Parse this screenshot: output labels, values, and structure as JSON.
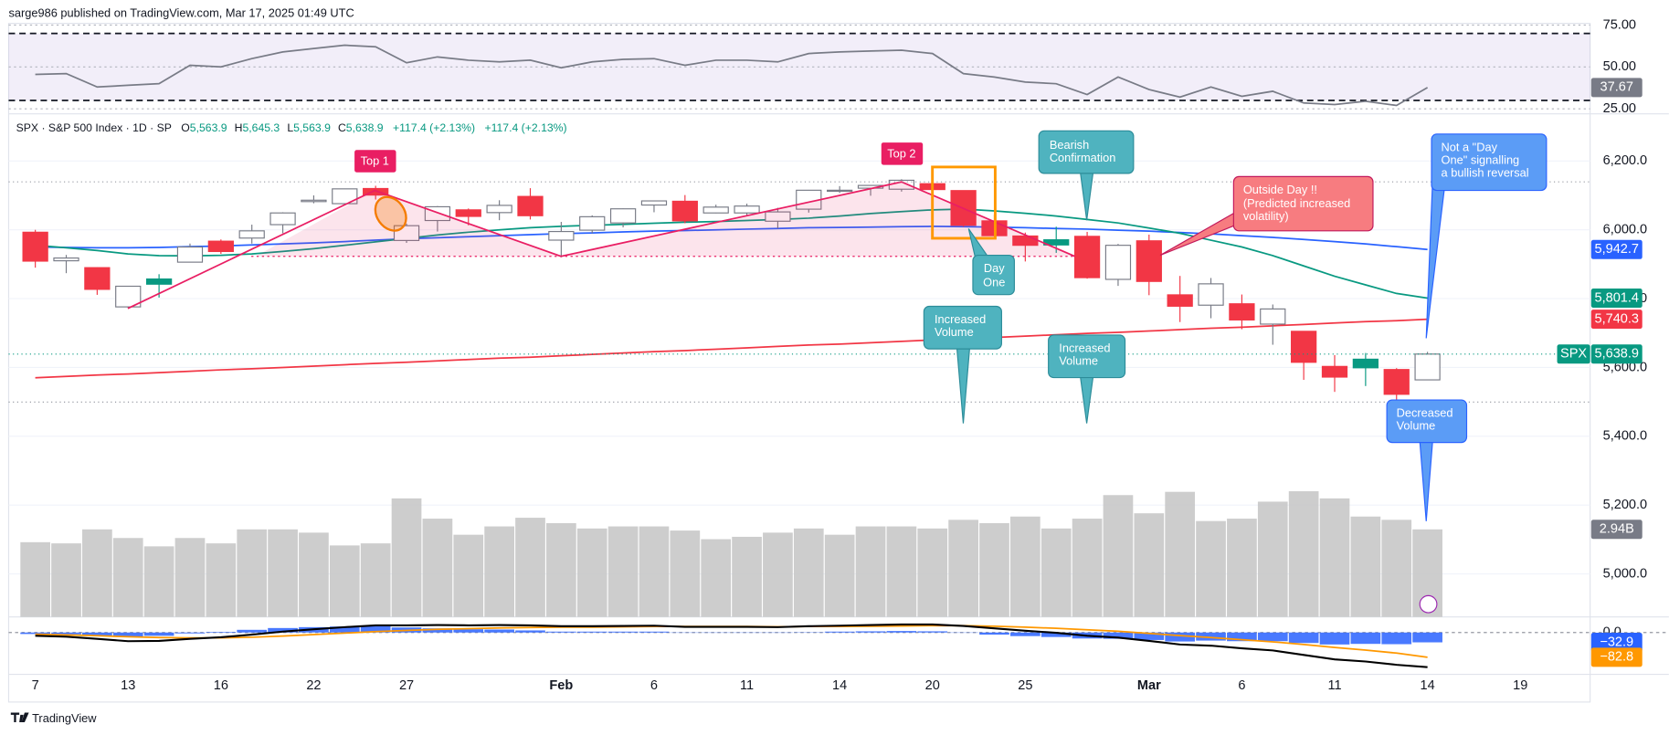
{
  "header": {
    "publisher": "sarge986 published on TradingView.com, Mar 17, 2025 01:49 UTC"
  },
  "footer": {
    "brand": "TradingView"
  },
  "chart_data": {
    "type": "candlestick",
    "legend": {
      "symbol": "SPX · S&P 500 Index · 1D · SP",
      "fields": [
        {
          "key": "O",
          "value": "5,563.9"
        },
        {
          "key": "H",
          "value": "5,645.3"
        },
        {
          "key": "L",
          "value": "5,563.9"
        },
        {
          "key": "C",
          "value": "5,638.9"
        }
      ],
      "changes": [
        "+117.4 (+2.13%)",
        "+117.4 (+2.13%)"
      ]
    },
    "categories": [
      "7",
      null,
      null,
      "13",
      null,
      null,
      "16",
      null,
      null,
      "22",
      null,
      null,
      "27",
      null,
      null,
      null,
      null,
      "Feb",
      null,
      null,
      "6",
      null,
      null,
      "11",
      null,
      null,
      "14",
      null,
      null,
      "20",
      null,
      null,
      "25",
      null,
      null,
      null,
      "Mar",
      null,
      null,
      "6",
      null,
      null,
      "11",
      null,
      null,
      "14",
      null,
      null,
      "19"
    ],
    "open": [
      5993,
      5910,
      5890,
      5776,
      5857,
      5906,
      5967,
      5976,
      6015,
      6082,
      6076,
      6120,
      5969,
      6027,
      6058,
      6050,
      6097,
      5970,
      5999,
      6020,
      6072,
      6083,
      6049,
      6049,
      6025,
      6060,
      6115,
      6121,
      6118,
      6134,
      6114,
      6026,
      5982,
      5971,
      5981,
      5856,
      5968,
      5811,
      5781,
      5785,
      5726,
      5705,
      5603,
      5624,
      5594,
      5563.9,
      null,
      null,
      null
    ],
    "high": [
      6000,
      5927,
      5891,
      5836,
      5871,
      5960,
      5972,
      6015,
      6051,
      6100,
      6118,
      6128,
      6018,
      6069,
      6062,
      6086,
      6121,
      6023,
      6042,
      6062,
      6084,
      6101,
      6073,
      6076,
      6064,
      6116,
      6127,
      6129,
      6147,
      6134,
      6114,
      6044,
      5992,
      6009,
      5994,
      5959,
      5986,
      5866,
      5860,
      5812,
      5783,
      5705,
      5636,
      5642,
      5598,
      5645.3,
      null,
      null,
      null
    ],
    "low": [
      5890,
      5874,
      5811,
      5773,
      5803,
      5906,
      5930,
      5960,
      5990,
      6077,
      6074,
      6088,
      5962,
      5995,
      6013,
      6028,
      6030,
      5920,
      5990,
      6007,
      6051,
      6019,
      6048,
      6042,
      6004,
      6050,
      6107,
      6099,
      6111,
      6084,
      6009,
      5980,
      5908,
      5933,
      5858,
      5837,
      5810,
      5732,
      5743,
      5711,
      5666,
      5564,
      5529,
      5546,
      5504,
      5563.9,
      null,
      null,
      null
    ],
    "close": [
      5909,
      5918,
      5827,
      5836,
      5842,
      5950,
      5937,
      5997,
      6049,
      6086,
      6119,
      6101,
      6012,
      6067,
      6039,
      6071,
      6041,
      5995,
      6038,
      6061,
      6084,
      6026,
      6066,
      6069,
      6052,
      6115,
      6115,
      6129,
      6144,
      6117,
      6013,
      5983,
      5955,
      5956,
      5861,
      5955,
      5850,
      5778,
      5843,
      5738,
      5770,
      5615,
      5572,
      5599,
      5522,
      5638.9,
      null,
      null,
      null
    ],
    "up_color": "#089981",
    "down_color": "#f23645",
    "hollow_stroke": "#787b86",
    "last_price": {
      "symbol": "SPX",
      "label": "5,638.9",
      "color": "#089981"
    },
    "ylim": [
      4875,
      6334
    ],
    "yticks": [
      {
        "value": 6200,
        "label": "6,200.0"
      },
      {
        "value": 6000,
        "label": "6,000.0"
      },
      {
        "value": 5800,
        "label": "5,800.0"
      },
      {
        "value": 5600,
        "label": "5,600.0"
      },
      {
        "value": 5400,
        "label": "5,400.0"
      },
      {
        "value": 5200,
        "label": "5,200.0"
      },
      {
        "value": 5000,
        "label": "5,000.0"
      }
    ],
    "grid": true,
    "overlays": [
      {
        "color": "#f23645",
        "last_label": "5,740.3",
        "values": [
          5570,
          5574,
          5578,
          5581,
          5585,
          5589,
          5593,
          5596,
          5600,
          5604,
          5608,
          5612,
          5615,
          5619,
          5623,
          5627,
          5630,
          5634,
          5638,
          5642,
          5646,
          5649,
          5653,
          5657,
          5661,
          5665,
          5668,
          5672,
          5676,
          5680,
          5683,
          5687,
          5691,
          5695,
          5699,
          5702,
          5706,
          5710,
          5714,
          5717,
          5721,
          5725,
          5729,
          5733,
          5736,
          5740.3,
          null,
          null,
          null
        ]
      },
      {
        "color": "#2962ff",
        "last_label": "5,942.7",
        "values": [
          5950,
          5949,
          5948,
          5948,
          5949,
          5951,
          5953,
          5956,
          5959,
          5962,
          5966,
          5970,
          5974,
          5977,
          5980,
          5983,
          5986,
          5989,
          5991,
          5994,
          5996,
          5998,
          6000,
          6002,
          6004,
          6006,
          6007,
          6008,
          6009,
          6010,
          6009,
          6008,
          6006,
          6004,
          6002,
          5999,
          5996,
          5992,
          5988,
          5983,
          5978,
          5972,
          5966,
          5959,
          5951,
          5942.7,
          null,
          null,
          null
        ]
      },
      {
        "color": "#089981",
        "last_label": "5,801.4",
        "values": [
          5955,
          5948,
          5940,
          5930,
          5925,
          5924,
          5926,
          5930,
          5937,
          5945,
          5955,
          5965,
          5975,
          5985,
          5993,
          6000,
          6006,
          6010,
          6013,
          6016,
          6019,
          6022,
          6024,
          6027,
          6030,
          6034,
          6040,
          6047,
          6053,
          6058,
          6060,
          6055,
          6048,
          6040,
          6030,
          6020,
          6005,
          5990,
          5970,
          5950,
          5925,
          5895,
          5865,
          5840,
          5815,
          5801.4,
          null,
          null,
          null
        ]
      }
    ],
    "volume": {
      "color": "#c4c4c4",
      "lim": [
        0,
        5
      ],
      "last_label": "2.94B",
      "values": [
        2.51,
        2.47,
        2.94,
        2.65,
        2.37,
        2.65,
        2.47,
        2.94,
        2.94,
        2.83,
        2.4,
        2.47,
        3.98,
        3.3,
        2.76,
        3.04,
        3.33,
        3.15,
        2.97,
        3.04,
        3.04,
        2.9,
        2.61,
        2.69,
        2.83,
        2.97,
        2.76,
        3.04,
        3.04,
        2.97,
        3.26,
        3.15,
        3.37,
        2.97,
        3.3,
        4.09,
        3.48,
        4.2,
        3.22,
        3.3,
        3.87,
        4.22,
        3.98,
        3.37,
        3.26,
        2.94,
        null,
        null,
        null
      ]
    },
    "rsi": {
      "color": "#787b86",
      "ylim": [
        22,
        76
      ],
      "yticks": [
        {
          "value": 75,
          "label": "75.00"
        },
        {
          "value": 50,
          "label": "50.00"
        },
        {
          "value": 25,
          "label": "25.00"
        }
      ],
      "band": [
        30,
        70
      ],
      "last_label": "37.67",
      "values": [
        45.5,
        46,
        38,
        39,
        40,
        51,
        50,
        55,
        59,
        61,
        63,
        62,
        52.5,
        56,
        54,
        53,
        54,
        49.5,
        53,
        54.5,
        55,
        51,
        54,
        54,
        53,
        58,
        59,
        59.5,
        60,
        58,
        46,
        44,
        41,
        40,
        33.5,
        44,
        36.5,
        32,
        38,
        32.5,
        35.5,
        28.5,
        27.5,
        29.5,
        27,
        37.67,
        null,
        null,
        null
      ]
    },
    "macd": {
      "ylim": [
        -140,
        45
      ],
      "yticks": [
        {
          "value": 0,
          "label": "0.0"
        }
      ],
      "line": {
        "color": "#000000",
        "values": [
          -11,
          -14,
          -21,
          -29,
          -28,
          -21,
          -16,
          -7,
          3,
          11,
          18,
          24,
          24,
          25,
          24,
          25,
          24,
          21,
          21,
          22,
          23,
          19,
          19,
          19,
          18,
          21,
          23,
          25,
          27,
          27,
          22,
          14,
          6,
          -1,
          -11,
          -17,
          -28,
          -40,
          -44,
          -53,
          -60,
          -75,
          -90,
          -97,
          -108,
          -115.7,
          null,
          null,
          null
        ]
      },
      "signal": {
        "color": "#ff9800",
        "last_label": "−82.8",
        "values": [
          -6,
          -8,
          -11,
          -14,
          -17,
          -18,
          -18,
          -16,
          -12,
          -7,
          -2,
          3,
          7,
          11,
          13,
          15,
          17,
          18,
          18,
          19,
          20,
          20,
          20,
          20,
          19,
          20,
          20,
          21,
          22,
          23,
          23,
          21,
          18,
          14,
          9,
          4,
          -3,
          -10,
          -17,
          -24,
          -31,
          -40,
          -50,
          -59,
          -69,
          -82.8,
          null,
          null,
          null
        ]
      },
      "histogram": {
        "color": "#2962ff",
        "last_label": "−32.9",
        "values": [
          -5,
          -6,
          -10,
          -15,
          -11,
          -3,
          2,
          9,
          15,
          18,
          20,
          21,
          17,
          14,
          11,
          10,
          7,
          3,
          3,
          3,
          3,
          -1,
          -1,
          -1,
          -1,
          1,
          3,
          4,
          5,
          4,
          -1,
          -7,
          -12,
          -15,
          -20,
          -21,
          -25,
          -30,
          -27,
          -29,
          -29,
          -35,
          -40,
          -38,
          -39,
          -32.9,
          null,
          null,
          null
        ]
      }
    },
    "annotations": {
      "top1": "Top 1",
      "top2": "Top 2",
      "bearish": [
        "Bearish",
        "Confirmation"
      ],
      "day_one": [
        "Day",
        "One"
      ],
      "volume_up_1": [
        "Increased",
        "Volume"
      ],
      "volume_up_2": [
        "Increased",
        "Volume"
      ],
      "outside_day": [
        "Outside Day !!",
        "(Predicted increased",
        "volatility)"
      ],
      "not_day_one": [
        "Not a \"Day",
        "One\" signalling",
        "a bullish reversal"
      ],
      "volume_down": [
        "Decreased",
        "Volume"
      ]
    }
  }
}
